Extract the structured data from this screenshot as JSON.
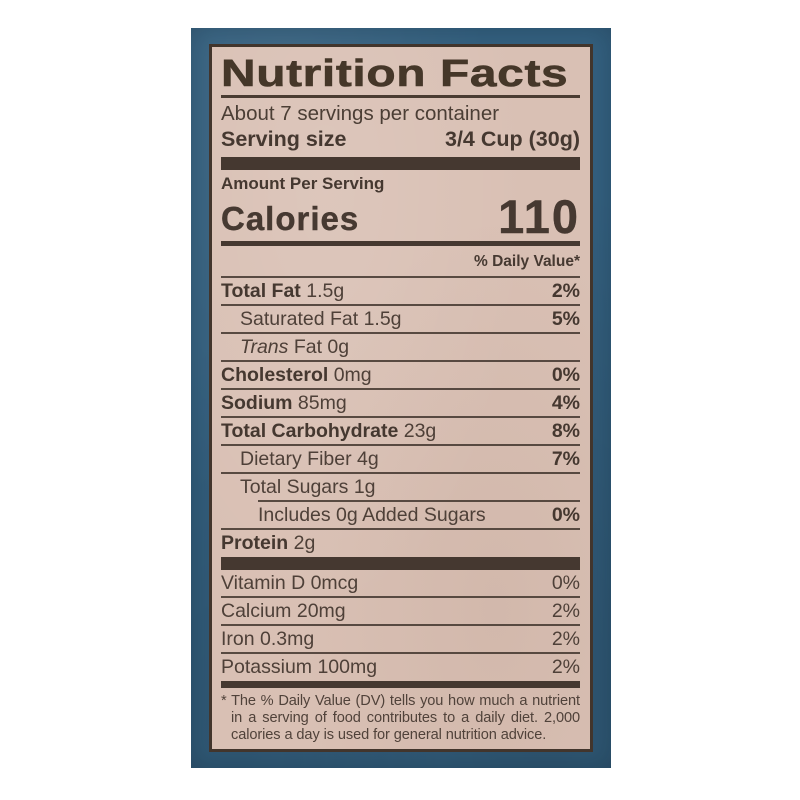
{
  "label": {
    "title": "Nutrition Facts",
    "servings_per_container": "About 7 servings per container",
    "serving_size_label": "Serving size",
    "serving_size_value": "3/4 Cup (30g)",
    "amount_per_serving": "Amount Per Serving",
    "calories_label": "Calories",
    "calories_value": "110",
    "daily_value_header": "% Daily Value*",
    "nutrient_rows": [
      {
        "label": "Total Fat",
        "amount": "1.5g",
        "dv": "2%",
        "bold_label": true,
        "indent": 0,
        "dv_bold": true
      },
      {
        "label": "Saturated Fat",
        "amount": "1.5g",
        "dv": "5%",
        "bold_label": false,
        "indent": 1,
        "dv_bold": true
      },
      {
        "label": "Trans Fat",
        "amount": "0g",
        "dv": "",
        "bold_label": false,
        "indent": 1,
        "italic_first": true
      },
      {
        "label": "Cholesterol",
        "amount": "0mg",
        "dv": "0%",
        "bold_label": true,
        "indent": 0,
        "dv_bold": true
      },
      {
        "label": "Sodium",
        "amount": "85mg",
        "dv": "4%",
        "bold_label": true,
        "indent": 0,
        "dv_bold": true
      },
      {
        "label": "Total Carbohydrate",
        "amount": "23g",
        "dv": "8%",
        "bold_label": true,
        "indent": 0,
        "dv_bold": true
      },
      {
        "label": "Dietary Fiber",
        "amount": "4g",
        "dv": "7%",
        "bold_label": false,
        "indent": 1,
        "dv_bold": true
      },
      {
        "label": "Total Sugars",
        "amount": "1g",
        "dv": "",
        "bold_label": false,
        "indent": 1
      },
      {
        "label": "Includes 0g Added Sugars",
        "amount": "",
        "dv": "0%",
        "bold_label": false,
        "indent": 2,
        "dv_bold": true
      },
      {
        "label": "Protein",
        "amount": "2g",
        "dv": "",
        "bold_label": true,
        "indent": 0
      }
    ],
    "vitamin_rows": [
      {
        "label": "Vitamin D",
        "amount": "0mcg",
        "dv": "0%"
      },
      {
        "label": "Calcium",
        "amount": "20mg",
        "dv": "2%"
      },
      {
        "label": "Iron",
        "amount": "0.3mg",
        "dv": "2%"
      },
      {
        "label": "Potassium",
        "amount": "100mg",
        "dv": "2%"
      }
    ],
    "footnote": "* The % Daily Value (DV) tells you how much a nutrient in a serving of food contributes to a daily diet. 2,000 calories a day is used for general nutrition advice."
  },
  "colors": {
    "blue_mat": "#34607f",
    "label_bg": "#d9c0b4",
    "ink": "#453830"
  }
}
